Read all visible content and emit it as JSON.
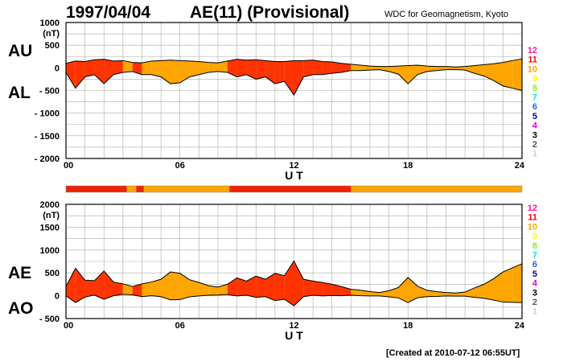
{
  "header": {
    "date": "1997/04/04",
    "title": "AE(11) (Provisional)",
    "source": "WDC for Geomagnetism, Kyoto"
  },
  "footer": {
    "created": "[Created at 2010-07-12 06:55UT]"
  },
  "x_axis": {
    "label": "U T",
    "ticks": [
      "00",
      "06",
      "12",
      "18",
      "24"
    ],
    "range_hours": [
      0,
      24
    ]
  },
  "colors": {
    "red_fill": "#ff3300",
    "orange_fill": "#ffa500",
    "bar_red": "#ee2200",
    "bar_orange": "#ffa500",
    "grid": "#aaaaaa"
  },
  "legend": {
    "items": [
      {
        "label": "12",
        "color": "#ff1493"
      },
      {
        "label": "11",
        "color": "#ff0000"
      },
      {
        "label": "10",
        "color": "#ffa500"
      },
      {
        "label": "9",
        "color": "#ffff00"
      },
      {
        "label": "8",
        "color": "#7cfc00"
      },
      {
        "label": "7",
        "color": "#00e5ee"
      },
      {
        "label": "6",
        "color": "#1e64ff"
      },
      {
        "label": "5",
        "color": "#0000aa"
      },
      {
        "label": "4",
        "color": "#dd00dd"
      },
      {
        "label": "3",
        "color": "#000000"
      },
      {
        "label": "2",
        "color": "#555555"
      },
      {
        "label": "1",
        "color": "#cccccc"
      }
    ]
  },
  "station_bar": {
    "segments": [
      {
        "start": 0.0,
        "end": 3.2,
        "color": "red"
      },
      {
        "start": 3.2,
        "end": 3.7,
        "color": "orange"
      },
      {
        "start": 3.7,
        "end": 4.1,
        "color": "red"
      },
      {
        "start": 4.1,
        "end": 8.6,
        "color": "orange"
      },
      {
        "start": 8.6,
        "end": 15.0,
        "color": "red"
      },
      {
        "start": 15.0,
        "end": 24.0,
        "color": "orange"
      }
    ]
  },
  "chart_data": [
    {
      "type": "area",
      "panel": "AU/AL",
      "series_labels": [
        "AU",
        "AL"
      ],
      "unit": "(nT)",
      "yticks": [
        1000,
        500,
        0,
        -500,
        -1000,
        -1500,
        -2000
      ],
      "ytick_labels": [
        "1000",
        "500",
        "0",
        "- 500",
        "- 1000",
        "- 1500",
        "- 2000"
      ],
      "ylim": [
        -2000,
        1000
      ],
      "x": [
        0,
        0.5,
        1,
        1.5,
        2,
        2.5,
        3,
        3.5,
        4,
        4.5,
        5,
        5.5,
        6,
        6.5,
        7,
        7.5,
        8,
        8.5,
        9,
        9.5,
        10,
        10.5,
        11,
        11.5,
        12,
        12.5,
        13,
        13.5,
        14,
        14.5,
        15,
        15.5,
        16,
        16.5,
        17,
        17.5,
        18,
        18.5,
        19,
        19.5,
        20,
        20.5,
        21,
        21.5,
        22,
        22.5,
        23,
        23.5,
        24
      ],
      "AU": [
        100,
        150,
        140,
        180,
        190,
        150,
        160,
        120,
        110,
        150,
        160,
        170,
        160,
        150,
        140,
        120,
        110,
        150,
        190,
        170,
        180,
        160,
        140,
        140,
        160,
        160,
        170,
        140,
        130,
        100,
        80,
        60,
        40,
        30,
        30,
        40,
        50,
        60,
        40,
        30,
        30,
        20,
        30,
        50,
        70,
        90,
        120,
        160,
        200
      ],
      "AL": [
        -100,
        -450,
        -200,
        -150,
        -350,
        -150,
        -100,
        -80,
        -150,
        -150,
        -200,
        -350,
        -330,
        -200,
        -150,
        -100,
        -80,
        -100,
        -200,
        -150,
        -250,
        -200,
        -350,
        -300,
        -600,
        -200,
        -150,
        -150,
        -120,
        -100,
        -60,
        -60,
        -50,
        -40,
        -80,
        -140,
        -350,
        -150,
        -80,
        -60,
        -40,
        -40,
        -50,
        -120,
        -180,
        -280,
        -400,
        -450,
        -500
      ]
    },
    {
      "type": "area",
      "panel": "AE/AO",
      "series_labels": [
        "AE",
        "AO"
      ],
      "unit": "(nT)",
      "yticks": [
        2000,
        1500,
        1000,
        500,
        0,
        -500
      ],
      "ytick_labels": [
        "2000",
        "1500",
        "1000",
        "500",
        "0",
        "- 500"
      ],
      "ylim": [
        -500,
        2000
      ],
      "x": [
        0,
        0.5,
        1,
        1.5,
        2,
        2.5,
        3,
        3.5,
        4,
        4.5,
        5,
        5.5,
        6,
        6.5,
        7,
        7.5,
        8,
        8.5,
        9,
        9.5,
        10,
        10.5,
        11,
        11.5,
        12,
        12.5,
        13,
        13.5,
        14,
        14.5,
        15,
        15.5,
        16,
        16.5,
        17,
        17.5,
        18,
        18.5,
        19,
        19.5,
        20,
        20.5,
        21,
        21.5,
        22,
        22.5,
        23,
        23.5,
        24
      ],
      "AE": [
        200,
        600,
        340,
        330,
        540,
        300,
        260,
        200,
        260,
        300,
        360,
        520,
        490,
        350,
        290,
        220,
        190,
        250,
        390,
        320,
        430,
        360,
        490,
        440,
        760,
        360,
        320,
        290,
        250,
        200,
        140,
        120,
        90,
        70,
        110,
        180,
        400,
        210,
        120,
        90,
        70,
        60,
        80,
        170,
        250,
        370,
        520,
        610,
        700
      ],
      "AO": [
        0,
        -150,
        -30,
        15,
        -80,
        0,
        30,
        20,
        -20,
        0,
        -20,
        -90,
        -85,
        -25,
        -5,
        10,
        15,
        25,
        -5,
        10,
        -35,
        -20,
        -105,
        -80,
        -220,
        -20,
        10,
        -5,
        5,
        0,
        10,
        0,
        -5,
        -5,
        -25,
        -50,
        -150,
        -45,
        -20,
        -15,
        -5,
        -10,
        -10,
        -35,
        -55,
        -95,
        -140,
        -145,
        -150
      ]
    }
  ],
  "axis_side_labels": {
    "top": [
      "AU",
      "AL"
    ],
    "bottom": [
      "AE",
      "AO"
    ]
  }
}
